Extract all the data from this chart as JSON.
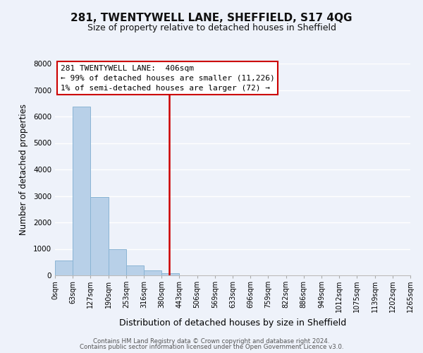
{
  "title": "281, TWENTYWELL LANE, SHEFFIELD, S17 4QG",
  "subtitle": "Size of property relative to detached houses in Sheffield",
  "xlabel": "Distribution of detached houses by size in Sheffield",
  "ylabel": "Number of detached properties",
  "bar_values": [
    560,
    6380,
    2950,
    980,
    380,
    175,
    80,
    0,
    0,
    0,
    0,
    0,
    0,
    0,
    0,
    0,
    0,
    0,
    0,
    0
  ],
  "bin_labels": [
    "0sqm",
    "63sqm",
    "127sqm",
    "190sqm",
    "253sqm",
    "316sqm",
    "380sqm",
    "443sqm",
    "506sqm",
    "569sqm",
    "633sqm",
    "696sqm",
    "759sqm",
    "822sqm",
    "886sqm",
    "949sqm",
    "1012sqm",
    "1075sqm",
    "1139sqm",
    "1202sqm",
    "1265sqm"
  ],
  "bar_color": "#b8d0e8",
  "bar_edge_color": "#8ab4d4",
  "marker_label_line1": "281 TWENTYWELL LANE:  406sqm",
  "marker_label_line2": "← 99% of detached houses are smaller (11,226)",
  "marker_label_line3": "1% of semi-detached houses are larger (72) →",
  "marker_color": "#cc0000",
  "ylim_max": 8000,
  "background_color": "#eef2fa",
  "grid_color": "#ffffff",
  "footer_line1": "Contains HM Land Registry data © Crown copyright and database right 2024.",
  "footer_line2": "Contains public sector information licensed under the Open Government Licence v3.0.",
  "title_fontsize": 11,
  "subtitle_fontsize": 9,
  "ylabel_fontsize": 8.5,
  "xlabel_fontsize": 9,
  "tick_fontsize": 7,
  "annotation_fontsize": 8
}
